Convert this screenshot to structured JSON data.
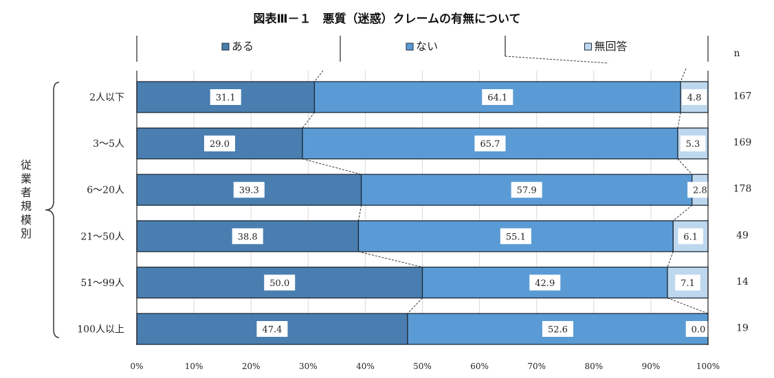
{
  "chart_data": {
    "type": "bar",
    "orientation": "horizontal",
    "stacked": true,
    "title": "図表Ⅲ－１　悪質（迷惑）クレームの有無について",
    "group_label": "従業者規模別",
    "n_header": "n",
    "categories": [
      "2人以下",
      "3〜5人",
      "6〜20人",
      "21〜50人",
      "51〜99人",
      "100人以上"
    ],
    "n_values": [
      "167",
      "169",
      "178",
      "49",
      "14",
      "19"
    ],
    "series": [
      {
        "name": "ある",
        "color": "#4a7eb0",
        "values": [
          31.1,
          29.0,
          39.3,
          38.8,
          50.0,
          47.4
        ],
        "labels": [
          "31.1",
          "29.0",
          "39.3",
          "38.8",
          "50.0",
          "47.4"
        ]
      },
      {
        "name": "ない",
        "color": "#5b9bd5",
        "values": [
          64.1,
          65.7,
          57.9,
          55.1,
          42.9,
          52.6
        ],
        "labels": [
          "64.1",
          "65.7",
          "57.9",
          "55.1",
          "42.9",
          "52.6"
        ]
      },
      {
        "name": "無回答",
        "color": "#bdd7ee",
        "values": [
          4.8,
          5.3,
          2.8,
          6.1,
          7.1,
          0.0
        ],
        "labels": [
          "4.8",
          "5.3",
          "2.8",
          "6.1",
          "7.1",
          "0.0"
        ]
      }
    ],
    "xlim": [
      0,
      100
    ],
    "x_ticks": [
      "0%",
      "10%",
      "20%",
      "30%",
      "40%",
      "50%",
      "60%",
      "70%",
      "80%",
      "90%",
      "100%"
    ],
    "grid": "vertical",
    "legend_position": "top"
  }
}
